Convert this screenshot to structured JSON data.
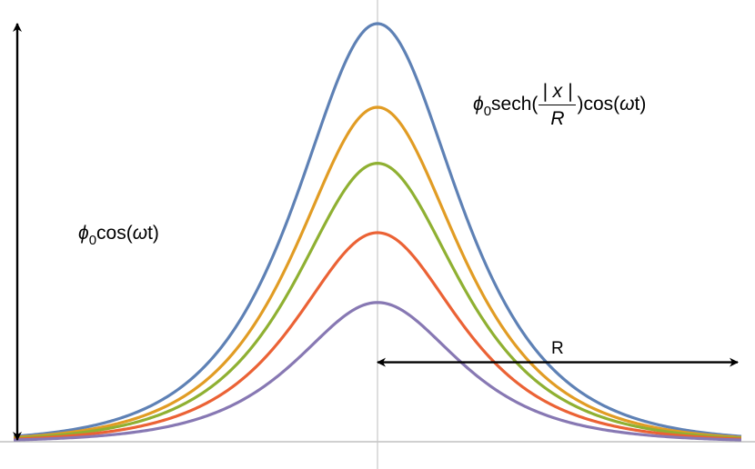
{
  "labels": {
    "amplitude_symbol": "ϕ",
    "amplitude_sub": "0",
    "amplitude_rest": "cos(",
    "amplitude_omega": "ω",
    "amplitude_tail": "t)",
    "formula_symbol": "ϕ",
    "formula_sub": "0",
    "formula_sech": "sech(",
    "formula_numerator": "| x |",
    "formula_denominator": "R",
    "formula_after": ")cos(",
    "formula_omega": "ω",
    "formula_tail": "t)",
    "width_label": "R"
  },
  "chart_data": {
    "type": "line",
    "function": "phi0*sech(|x|/R)*cos(omega*t)",
    "R": 1,
    "xlim": [
      -5.05,
      5.05
    ],
    "ylim": [
      0,
      1.0
    ],
    "grid": false,
    "axes": {
      "x_axis": true,
      "y_axis_line": true
    },
    "series": [
      {
        "amplitude": 1.0,
        "color": "#5E81B5"
      },
      {
        "amplitude": 0.8,
        "color": "#E19C24"
      },
      {
        "amplitude": 0.666,
        "color": "#8FB032"
      },
      {
        "amplitude": 0.5,
        "color": "#EB6235"
      },
      {
        "amplitude": 0.333,
        "color": "#8778B3"
      }
    ],
    "annotations": [
      {
        "type": "double-arrow",
        "orientation": "vertical",
        "x": -5.0,
        "y_from": 0,
        "y_to": 1.0
      },
      {
        "type": "double-arrow",
        "orientation": "horizontal",
        "y": 0.19,
        "x_from": 0,
        "x_to": 5.0
      }
    ]
  }
}
